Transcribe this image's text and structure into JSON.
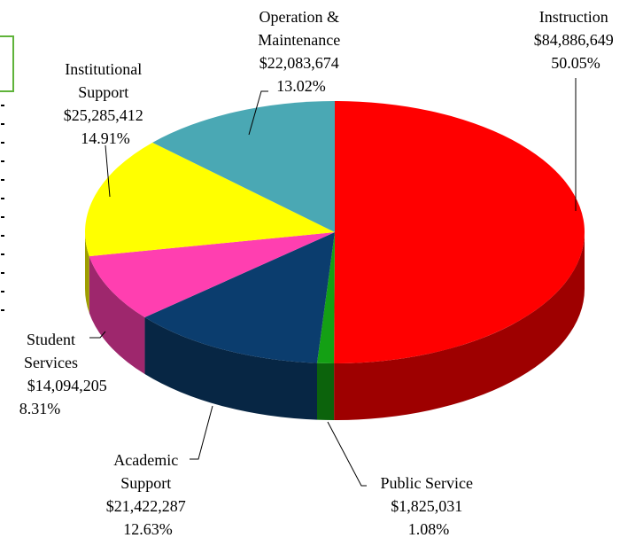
{
  "chart_data": {
    "type": "pie",
    "title": "",
    "slices": [
      {
        "key": "instruction",
        "name": "Instruction",
        "label_lines": [
          "Instruction",
          "$84,886,649",
          "50.05%"
        ],
        "amount": 84886649,
        "percent": 50.05,
        "color": "#ff0000"
      },
      {
        "key": "public_service",
        "name": "Public Service",
        "label_lines": [
          "Public Service",
          "$1,825,031",
          "1.08%"
        ],
        "amount": 1825031,
        "percent": 1.08,
        "color": "#14a014"
      },
      {
        "key": "academic_support",
        "name": "Academic Support",
        "label_lines": [
          "Academic",
          "Support",
          "$21,422,287",
          "12.63%"
        ],
        "amount": 21422287,
        "percent": 12.63,
        "color": "#0b3d6e"
      },
      {
        "key": "student_services",
        "name": "Student Services",
        "label_lines": [
          "Student",
          "Services",
          "$14,094,205",
          "8.31%"
        ],
        "amount": 14094205,
        "percent": 8.31,
        "color": "#ff3fb0"
      },
      {
        "key": "institutional_support",
        "name": "Institutional Support",
        "label_lines": [
          "Institutional",
          "Support",
          "$25,285,412",
          "14.91%"
        ],
        "amount": 25285412,
        "percent": 14.91,
        "color": "#ffff00"
      },
      {
        "key": "operation_maintenance",
        "name": "Operation & Maintenance",
        "label_lines": [
          "Operation &",
          "Maintenance",
          "$22,083,674",
          "13.02%"
        ],
        "amount": 22083674,
        "percent": 13.02,
        "color": "#4aa8b4"
      }
    ],
    "style": "3d-exploded-none",
    "legend": "none"
  }
}
